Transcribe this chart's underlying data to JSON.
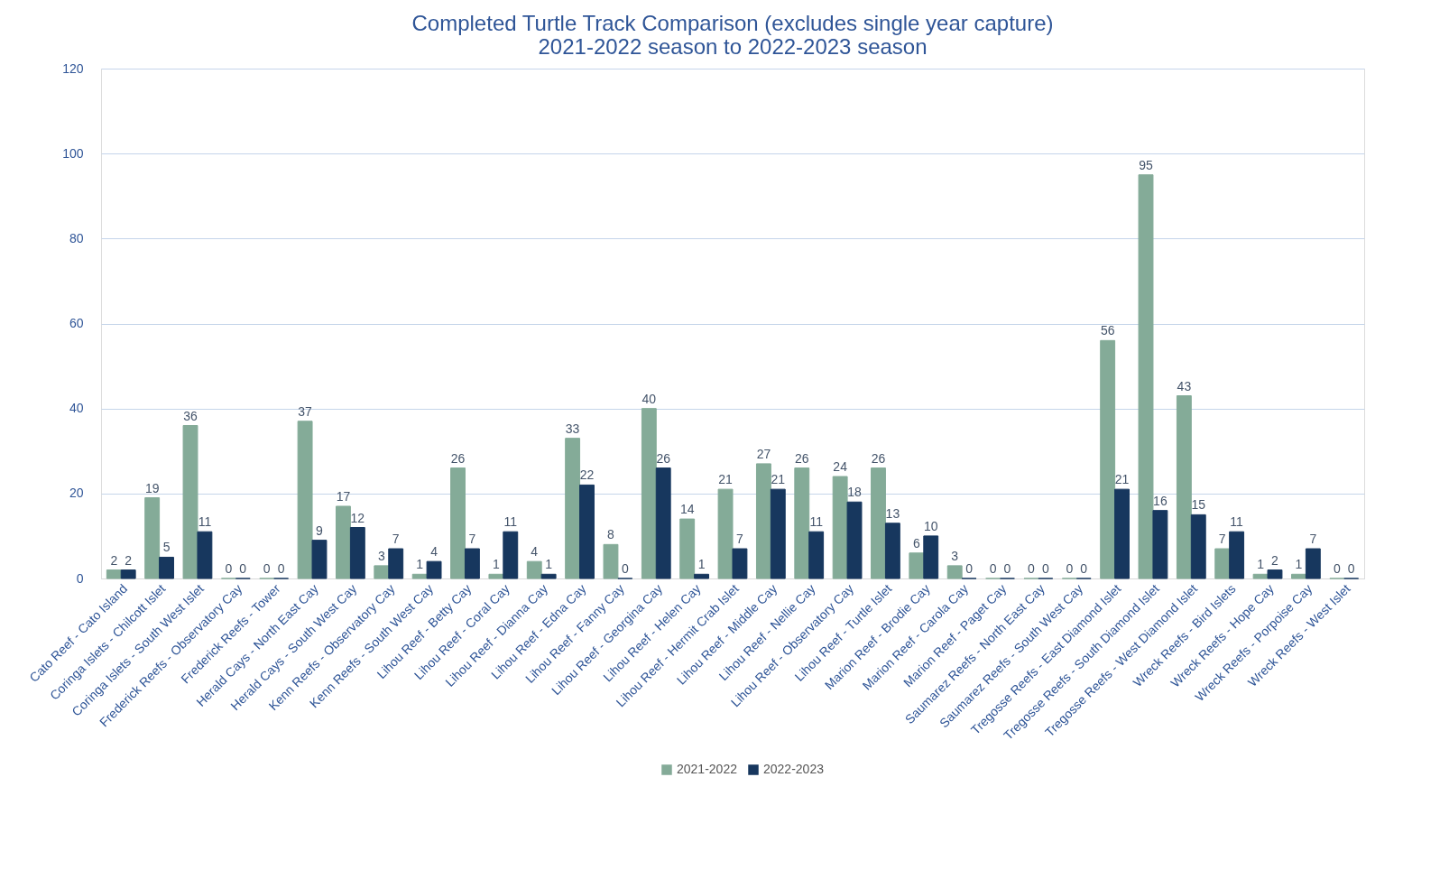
{
  "chart_data": {
    "type": "bar",
    "title": [
      "Completed Turtle Track Comparison (excludes single year capture)",
      "2021-2022 season to 2022-2023 season"
    ],
    "categories": [
      "Cato Reef - Cato Island",
      "Coringa Islets - Chilcott Islet",
      "Coringa Islets - South West Islet",
      "Frederick Reefs - Observatory Cay",
      "Frederick Reefs - Tower",
      "Herald Cays - North East Cay",
      "Herald Cays - South West Cay",
      "Kenn Reefs - Observatory Cay",
      "Kenn Reefs - South West Cay",
      "Lihou Reef - Betty Cay",
      "Lihou Reef - Coral Cay",
      "Lihou Reef - Dianna Cay",
      "Lihou Reef - Edna Cay",
      "Lihou Reef - Fanny Cay",
      "Lihou Reef - Georgina Cay",
      "Lihou Reef - Helen Cay",
      "Lihou Reef - Hermit Crab Islet",
      "Lihou Reef - Middle Cay",
      "Lihou Reef - Nellie Cay",
      "Lihou Reef - Observatory Cay",
      "Lihou Reef - Turtle Islet",
      "Marion Reef - Brodie Cay",
      "Marion Reef - Carola Cay",
      "Marion Reef - Paget Cay",
      "Saumarez Reefs - North East Cay",
      "Saumarez Reefs - South West Cay",
      "Tregosse Reefs - East Diamond Islet",
      "Tregosse Reefs - South Diamond Islet",
      "Tregosse Reefs - West Diamond Islet",
      "Wreck Reefs - Bird Islets",
      "Wreck Reefs - Hope Cay",
      "Wreck Reefs - Porpoise Cay",
      "Wreck Reefs - West Islet"
    ],
    "series": [
      {
        "name": "2021-2022",
        "color": "#84ab98",
        "values": [
          2,
          19,
          36,
          0,
          0,
          37,
          17,
          3,
          1,
          26,
          1,
          4,
          33,
          8,
          40,
          14,
          21,
          27,
          26,
          24,
          26,
          6,
          3,
          0,
          0,
          0,
          56,
          95,
          43,
          7,
          1,
          1,
          0
        ]
      },
      {
        "name": "2022-2023",
        "color": "#17375e",
        "values": [
          2,
          5,
          11,
          0,
          0,
          9,
          12,
          7,
          4,
          7,
          11,
          1,
          22,
          0,
          26,
          1,
          7,
          21,
          11,
          18,
          13,
          10,
          0,
          0,
          0,
          0,
          21,
          16,
          15,
          11,
          2,
          7,
          0
        ]
      }
    ],
    "ylim": [
      0,
      120
    ],
    "yticks": [
      0,
      20,
      40,
      60,
      80,
      100,
      120
    ],
    "grid": "y",
    "legend": "bottom",
    "data_labels": true
  }
}
